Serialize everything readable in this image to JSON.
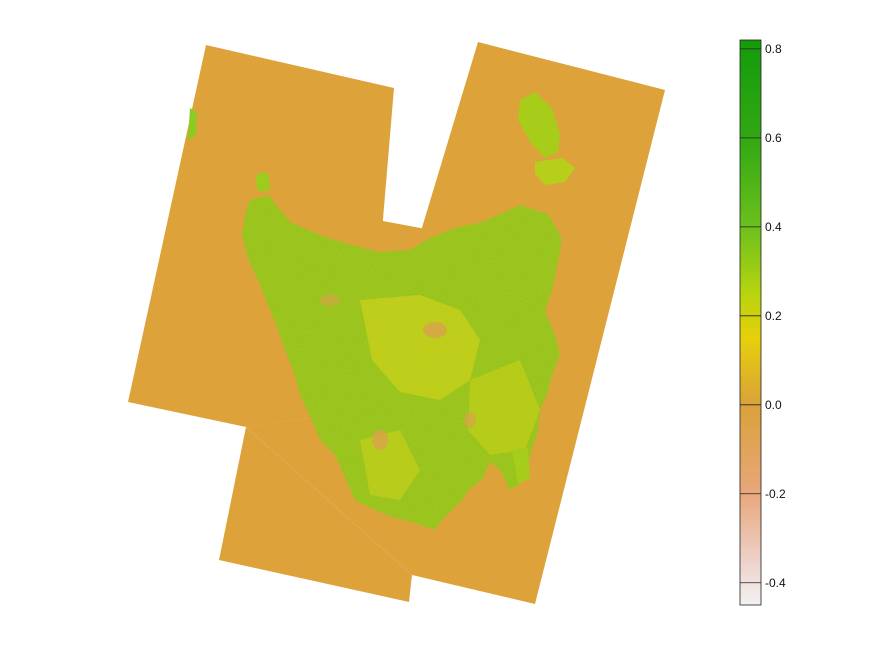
{
  "map": {
    "raster_fill_color": "#dda33a",
    "vegetation_colors": [
      "#c6d20e",
      "#8bcb1c",
      "#5fb81a",
      "#3aa514"
    ],
    "bare_color": "#d9a24a"
  },
  "legend": {
    "range": [
      -0.45,
      0.82
    ],
    "ticks": [
      {
        "value": 0.8,
        "label": "0.8"
      },
      {
        "value": 0.6,
        "label": "0.6"
      },
      {
        "value": 0.4,
        "label": "0.4"
      },
      {
        "value": 0.2,
        "label": "0.2"
      },
      {
        "value": 0.0,
        "label": "0.0"
      },
      {
        "value": -0.2,
        "label": "-0.2"
      },
      {
        "value": -0.4,
        "label": "-0.4"
      }
    ],
    "color_stops": [
      {
        "value": 0.82,
        "color": "#149b0c"
      },
      {
        "value": 0.6,
        "color": "#31a813"
      },
      {
        "value": 0.4,
        "color": "#6cc01c"
      },
      {
        "value": 0.25,
        "color": "#b7d40f"
      },
      {
        "value": 0.15,
        "color": "#e6d00a"
      },
      {
        "value": 0.0,
        "color": "#daa23a"
      },
      {
        "value": -0.2,
        "color": "#e8a77c"
      },
      {
        "value": -0.35,
        "color": "#eed1c8"
      },
      {
        "value": -0.45,
        "color": "#f2f2f2"
      }
    ]
  }
}
